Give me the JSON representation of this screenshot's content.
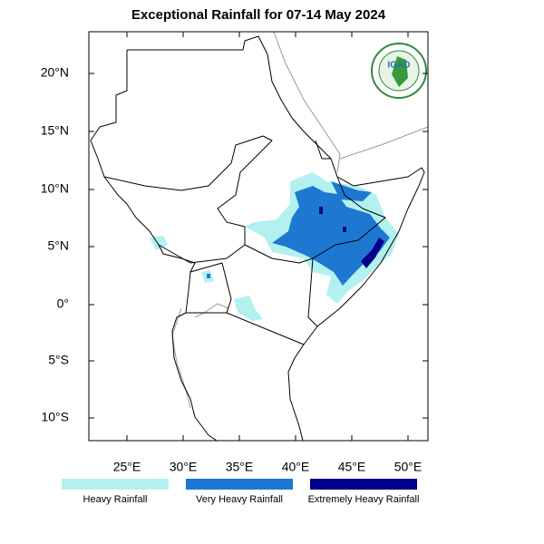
{
  "title": "Exceptional Rainfall for 07-14 May 2024",
  "logo": {
    "text": "IGAD"
  },
  "axes": {
    "lon_labels": [
      "25°E",
      "30°E",
      "35°E",
      "40°E",
      "45°E",
      "50°E"
    ],
    "lat_labels": [
      "20°N",
      "15°N",
      "10°N",
      "5°N",
      "0°",
      "5°S",
      "10°S"
    ]
  },
  "legend": [
    {
      "label": "Heavy Rainfall",
      "color": "#b3f0f0"
    },
    {
      "label": "Very Heavy Rainfall",
      "color": "#1e78d2"
    },
    {
      "label": "Extremely Heavy Rainfall",
      "color": "#00008c"
    }
  ]
}
